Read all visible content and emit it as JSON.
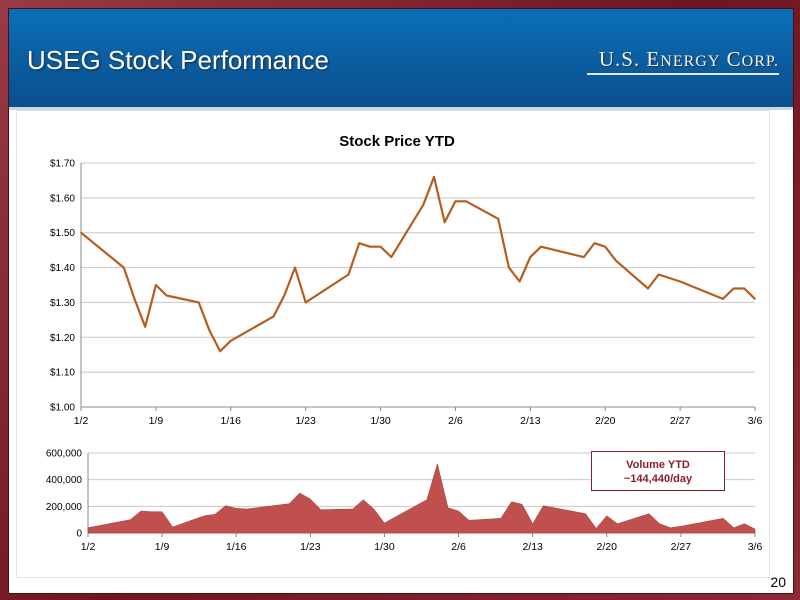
{
  "slide": {
    "title": "USEG Stock Performance",
    "logo_main": "U.S. E",
    "logo_sc1": "NERGY",
    "logo_mid": " C",
    "logo_sc2": "ORP.",
    "page_number": "20"
  },
  "chart_data": [
    {
      "type": "line",
      "title": "Stock Price YTD",
      "xlabel": "",
      "ylabel": "",
      "x_tick_labels": [
        "1/2",
        "1/9",
        "1/16",
        "1/23",
        "1/30",
        "2/6",
        "2/13",
        "2/20",
        "2/27",
        "3/6"
      ],
      "ylim": [
        1.0,
        1.7
      ],
      "y_tick_labels": [
        "$1.00",
        "$1.10",
        "$1.20",
        "$1.30",
        "$1.40",
        "$1.50",
        "$1.60",
        "$1.70"
      ],
      "grid": true,
      "color": "#b85c1e",
      "series": [
        {
          "x": [
            "1/2",
            "1/6",
            "1/7",
            "1/8",
            "1/9",
            "1/10",
            "1/13",
            "1/14",
            "1/15",
            "1/16",
            "1/20",
            "1/21",
            "1/22",
            "1/23",
            "1/27",
            "1/28",
            "1/29",
            "1/30",
            "1/31",
            "2/3",
            "2/4",
            "2/5",
            "2/6",
            "2/7",
            "2/10",
            "2/11",
            "2/12",
            "2/13",
            "2/14",
            "2/18",
            "2/19",
            "2/20",
            "2/21",
            "2/24",
            "2/25",
            "2/26",
            "2/27",
            "3/3",
            "3/4",
            "3/5",
            "3/6"
          ],
          "values": [
            1.5,
            1.4,
            1.31,
            1.23,
            1.35,
            1.32,
            1.3,
            1.22,
            1.16,
            1.19,
            1.26,
            1.32,
            1.4,
            1.3,
            1.38,
            1.47,
            1.46,
            1.46,
            1.43,
            1.58,
            1.66,
            1.53,
            1.59,
            1.59,
            1.54,
            1.4,
            1.36,
            1.43,
            1.46,
            1.43,
            1.47,
            1.46,
            1.42,
            1.34,
            1.38,
            1.37,
            1.36,
            1.31,
            1.34,
            1.34,
            1.31
          ]
        }
      ]
    },
    {
      "type": "area",
      "title": "",
      "xlabel": "",
      "ylabel": "",
      "x_tick_labels": [
        "1/2",
        "1/9",
        "1/16",
        "1/23",
        "1/30",
        "2/6",
        "2/13",
        "2/20",
        "2/27",
        "3/6"
      ],
      "ylim": [
        0,
        600000
      ],
      "y_tick_labels": [
        "0",
        "200,000",
        "400,000",
        "600,000"
      ],
      "grid": true,
      "color": "#c0504d",
      "annotation_line1": "Volume YTD",
      "annotation_line2": "~144,440/day",
      "series": [
        {
          "x": [
            "1/2",
            "1/6",
            "1/7",
            "1/8",
            "1/9",
            "1/10",
            "1/13",
            "1/14",
            "1/15",
            "1/16",
            "1/17",
            "1/21",
            "1/22",
            "1/23",
            "1/24",
            "1/27",
            "1/28",
            "1/29",
            "1/30",
            "2/3",
            "2/4",
            "2/5",
            "2/6",
            "2/7",
            "2/10",
            "2/11",
            "2/12",
            "2/13",
            "2/14",
            "2/18",
            "2/19",
            "2/20",
            "2/21",
            "2/24",
            "2/25",
            "2/26",
            "2/27",
            "3/3",
            "3/4",
            "3/5",
            "3/6"
          ],
          "values": [
            40000,
            100000,
            165000,
            160000,
            160000,
            45000,
            130000,
            140000,
            205000,
            185000,
            180000,
            220000,
            300000,
            255000,
            175000,
            180000,
            250000,
            180000,
            75000,
            250000,
            520000,
            190000,
            165000,
            95000,
            110000,
            235000,
            215000,
            70000,
            205000,
            145000,
            35000,
            130000,
            70000,
            145000,
            70000,
            40000,
            50000,
            110000,
            40000,
            70000,
            30000
          ]
        }
      ]
    }
  ]
}
